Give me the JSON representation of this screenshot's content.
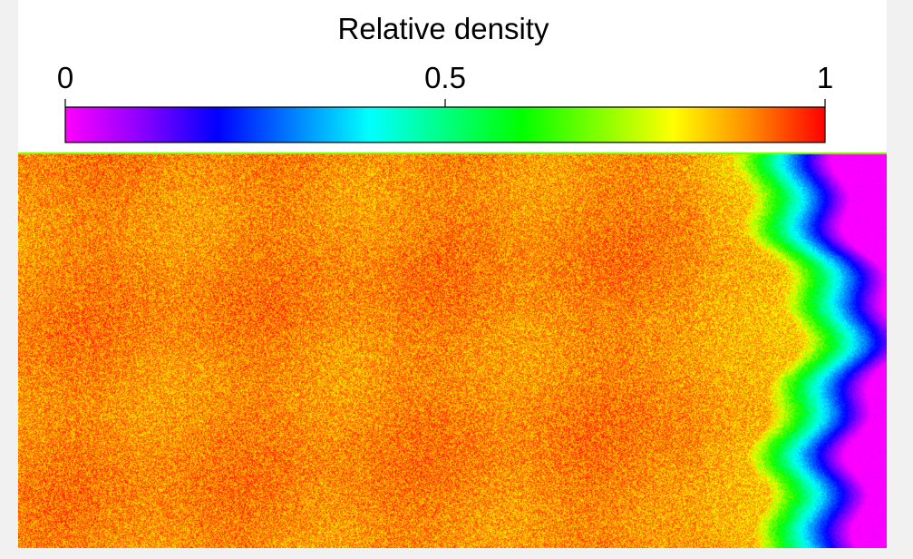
{
  "chart_data": {
    "type": "heatmap",
    "title": "",
    "xlabel": "",
    "ylabel": "",
    "colorbar": {
      "label": "Relative density",
      "range": [
        0,
        1
      ],
      "ticks": [
        {
          "value": 0,
          "label": "0"
        },
        {
          "value": 0.5,
          "label": "0.5"
        },
        {
          "value": 1,
          "label": "1"
        }
      ],
      "colormap": [
        {
          "v": 0.0,
          "color": "#ff00ff"
        },
        {
          "v": 0.1,
          "color": "#8b00ff"
        },
        {
          "v": 0.2,
          "color": "#0000ff"
        },
        {
          "v": 0.4,
          "color": "#00ffff"
        },
        {
          "v": 0.6,
          "color": "#00ff00"
        },
        {
          "v": 0.8,
          "color": "#ffff00"
        },
        {
          "v": 0.9,
          "color": "#ff8c00"
        },
        {
          "v": 1.0,
          "color": "#ff0000"
        }
      ]
    },
    "field": {
      "background_density": 0.9,
      "noise_amplitude": 0.05,
      "right_region": "low-density region at the right edge, ranging from about 0.6 down to 0"
    }
  }
}
